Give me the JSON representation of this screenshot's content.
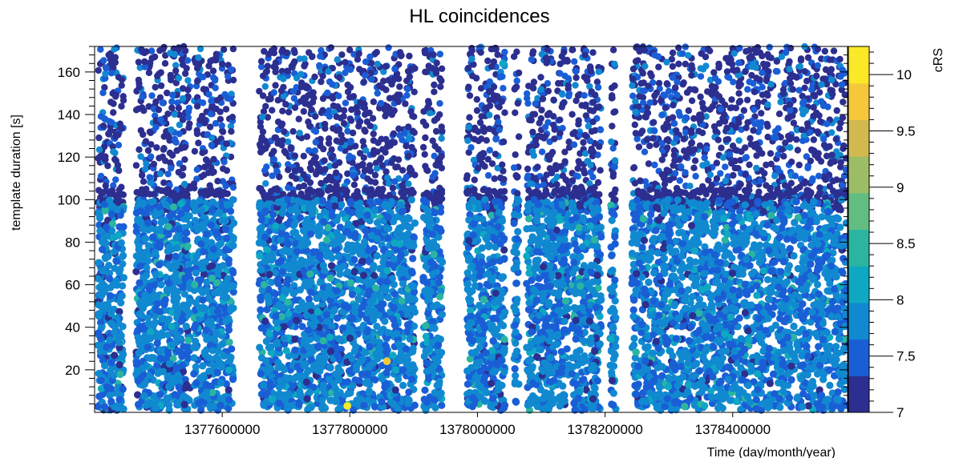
{
  "chart_data": {
    "type": "scatter",
    "title": "HL coincidences",
    "xlabel": "Time (day/month/year)",
    "ylabel": "template duration [s]",
    "zlabel": "cRS",
    "xlim": [
      1377400000,
      1378580000
    ],
    "ylim": [
      0,
      172
    ],
    "zlim": [
      7,
      10.25
    ],
    "x_ticks": [
      1377600000,
      1377800000,
      1378000000,
      1378200000,
      1378400000
    ],
    "x_tick_labels": [
      "1377600000",
      "1377800000",
      "1378000000",
      "1378200000",
      "1378400000"
    ],
    "y_ticks": [
      20,
      40,
      60,
      80,
      100,
      120,
      140,
      160
    ],
    "y_tick_labels": [
      "20",
      "40",
      "60",
      "80",
      "100",
      "120",
      "140",
      "160"
    ],
    "z_ticks": [
      7,
      7.5,
      8,
      8.5,
      9,
      9.5,
      10
    ],
    "z_tick_labels": [
      "7",
      "7.5",
      "8",
      "8.5",
      "9",
      "9.5",
      "10"
    ],
    "grid": false,
    "legend": "colorbar-right",
    "colormap": [
      "#2c2f8f",
      "#1a5ed6",
      "#1189d0",
      "#0ea8c2",
      "#2bb5a0",
      "#62bd82",
      "#9cbd66",
      "#d2b94e",
      "#f4c83a",
      "#fbe929"
    ],
    "data_segments": [
      {
        "x_start": 1377405000,
        "x_end": 1377446000
      },
      {
        "x_start": 1377465000,
        "x_end": 1377550000
      },
      {
        "x_start": 1377555000,
        "x_end": 1377618000
      },
      {
        "x_start": 1377658000,
        "x_end": 1377902000
      },
      {
        "x_start": 1377915000,
        "x_end": 1377945000
      },
      {
        "x_start": 1377983000,
        "x_end": 1378043000
      },
      {
        "x_start": 1378057000,
        "x_end": 1378065000
      },
      {
        "x_start": 1378077000,
        "x_end": 1378144000
      },
      {
        "x_start": 1378148000,
        "x_end": 1378174000
      },
      {
        "x_start": 1378175000,
        "x_end": 1378194000
      },
      {
        "x_start": 1378208000,
        "x_end": 1378217000
      },
      {
        "x_start": 1378242000,
        "x_end": 1378578000
      }
    ],
    "dense_region_y_max": 100,
    "highlights": [
      {
        "x": 1377796000,
        "y": 3,
        "crs": 10.2
      },
      {
        "x": 1377858000,
        "y": 24,
        "crs": 9.7
      },
      {
        "x": 1378040000,
        "y": 164,
        "crs": 8.2
      },
      {
        "x": 1378010000,
        "y": 53,
        "crs": 8.6
      }
    ]
  }
}
